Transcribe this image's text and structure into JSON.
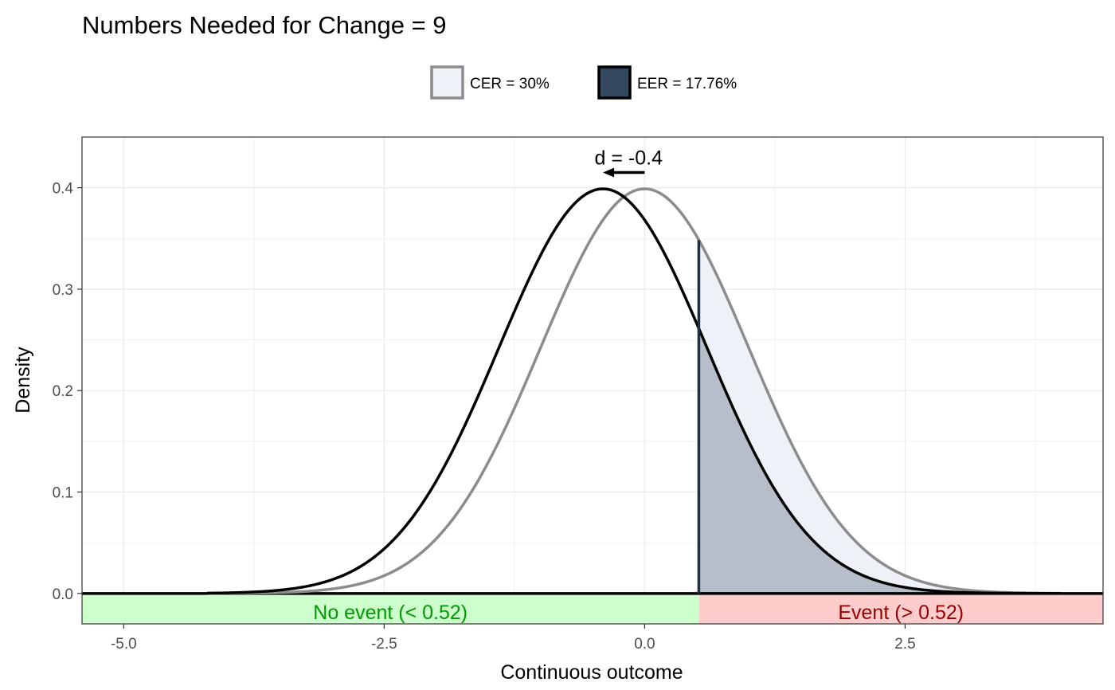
{
  "chart_data": {
    "type": "line",
    "title": "Numbers Needed for Change = 9",
    "xlabel": "Continuous outcome",
    "ylabel": "Density",
    "xlim": [
      -5.4,
      4.4
    ],
    "ylim": [
      -0.03,
      0.45
    ],
    "x_ticks": [
      -5.0,
      -2.5,
      0.0,
      2.5
    ],
    "x_tick_labels": [
      "-5.0",
      "-2.5",
      "0.0",
      "2.5"
    ],
    "y_ticks": [
      0.0,
      0.1,
      0.2,
      0.3,
      0.4
    ],
    "y_tick_labels": [
      "0.0",
      "0.1",
      "0.2",
      "0.3",
      "0.4"
    ],
    "grid": true,
    "legend_position": "top",
    "threshold": 0.52,
    "effect_size": -0.4,
    "annotation": "d = -0.4",
    "series": [
      {
        "name": "CER = 30%",
        "distribution": "normal",
        "mean": 0.0,
        "sd": 1.0,
        "line_color": "#8c8c8c",
        "fill_color": "#eef2f8"
      },
      {
        "name": "EER = 17.76%",
        "distribution": "normal",
        "mean": -0.4,
        "sd": 1.0,
        "line_color": "#000000",
        "fill_color": "#34495e"
      }
    ],
    "regions": [
      {
        "label": "No event (< 0.52)",
        "from": -5.4,
        "to": 0.52,
        "fill": "#ccffcc",
        "text_color": "#009900"
      },
      {
        "label": "Event (> 0.52)",
        "from": 0.52,
        "to": 4.4,
        "fill": "#ffcccc",
        "text_color": "#990000"
      }
    ],
    "threshold_line_color": "#1f2e40"
  }
}
